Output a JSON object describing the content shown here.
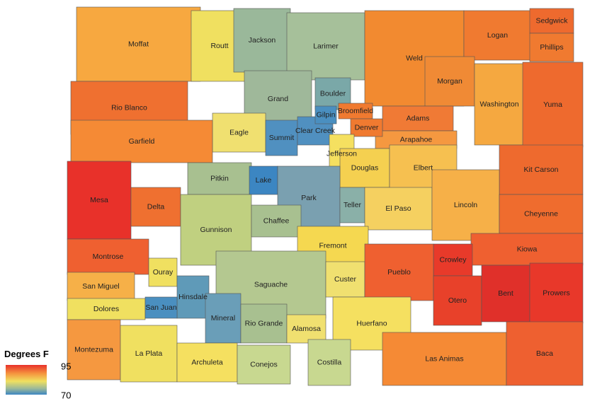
{
  "legend": {
    "title": "Degrees F",
    "max": "95",
    "min": "70"
  },
  "counties": [
    {
      "name": "Moffat",
      "color": "#f7a840"
    },
    {
      "name": "Routt",
      "color": "#f0e060"
    },
    {
      "name": "Jackson",
      "color": "#9ab89a"
    },
    {
      "name": "Larimer",
      "color": "#a6c09a"
    },
    {
      "name": "Weld",
      "color": "#f28a30"
    },
    {
      "name": "Logan",
      "color": "#f07a30"
    },
    {
      "name": "Sedgwick",
      "color": "#ee6a2e"
    },
    {
      "name": "Phillips",
      "color": "#f07a30"
    },
    {
      "name": "Rio Blanco",
      "color": "#ef7030"
    },
    {
      "name": "Grand",
      "color": "#9fb89a"
    },
    {
      "name": "Boulder",
      "color": "#7aa8a8"
    },
    {
      "name": "Morgan",
      "color": "#f08a35"
    },
    {
      "name": "Washington",
      "color": "#f5a840"
    },
    {
      "name": "Yuma",
      "color": "#ee6a2e"
    },
    {
      "name": "Adams",
      "color": "#f07a35"
    },
    {
      "name": "Arapahoe",
      "color": "#f59840"
    },
    {
      "name": "Eagle",
      "color": "#f0e070"
    },
    {
      "name": "Garfield",
      "color": "#f58a35"
    },
    {
      "name": "Summit",
      "color": "#5090c0"
    },
    {
      "name": "Clear Creek",
      "color": "#5090c0"
    },
    {
      "name": "Gilpin",
      "color": "#4a8fc0"
    },
    {
      "name": "Broomfield",
      "color": "#f07a30"
    },
    {
      "name": "Denver",
      "color": "#f07a30"
    },
    {
      "name": "Jefferson",
      "color": "#f5e060"
    },
    {
      "name": "Douglas",
      "color": "#f5d050"
    },
    {
      "name": "Elbert",
      "color": "#f6c050"
    },
    {
      "name": "Kit Carson",
      "color": "#ee6a2e"
    },
    {
      "name": "Mesa",
      "color": "#e8312a"
    },
    {
      "name": "Pitkin",
      "color": "#a8c090"
    },
    {
      "name": "Lake",
      "color": "#3c86c2"
    },
    {
      "name": "Park",
      "color": "#7aa0b0"
    },
    {
      "name": "Delta",
      "color": "#ef7030"
    },
    {
      "name": "Teller",
      "color": "#8ab0a8"
    },
    {
      "name": "El Paso",
      "color": "#f5d060"
    },
    {
      "name": "Lincoln",
      "color": "#f6b048"
    },
    {
      "name": "Cheyenne",
      "color": "#ef6c2e"
    },
    {
      "name": "Gunnison",
      "color": "#c0d080"
    },
    {
      "name": "Chaffee",
      "color": "#a8c090"
    },
    {
      "name": "Montrose",
      "color": "#ef6030"
    },
    {
      "name": "Fremont",
      "color": "#f5d850"
    },
    {
      "name": "Kiowa",
      "color": "#ef6030"
    },
    {
      "name": "Crowley",
      "color": "#e83a2a"
    },
    {
      "name": "Ouray",
      "color": "#f0e060"
    },
    {
      "name": "San Miguel",
      "color": "#f6b048"
    },
    {
      "name": "Saguache",
      "color": "#b4c890"
    },
    {
      "name": "Custer",
      "color": "#f0e070"
    },
    {
      "name": "Pueblo",
      "color": "#ef6030"
    },
    {
      "name": "Otero",
      "color": "#e8412a"
    },
    {
      "name": "Bent",
      "color": "#e0302a"
    },
    {
      "name": "Prowers",
      "color": "#e8382a"
    },
    {
      "name": "Hinsdale",
      "color": "#5f9ab8"
    },
    {
      "name": "Dolores",
      "color": "#f0e060"
    },
    {
      "name": "San Juan",
      "color": "#4a8fc0"
    },
    {
      "name": "Mineral",
      "color": "#6a9eb8"
    },
    {
      "name": "Rio Grande",
      "color": "#a8c090"
    },
    {
      "name": "Alamosa",
      "color": "#f0e070"
    },
    {
      "name": "Huerfano",
      "color": "#f5e060"
    },
    {
      "name": "Las Animas",
      "color": "#f58a35"
    },
    {
      "name": "Baca",
      "color": "#ee6030"
    },
    {
      "name": "Montezuma",
      "color": "#f59840"
    },
    {
      "name": "La Plata",
      "color": "#f0e060"
    },
    {
      "name": "Archuleta",
      "color": "#f5e060"
    },
    {
      "name": "Conejos",
      "color": "#c8d890"
    },
    {
      "name": "Costilla",
      "color": "#c8d890"
    }
  ]
}
